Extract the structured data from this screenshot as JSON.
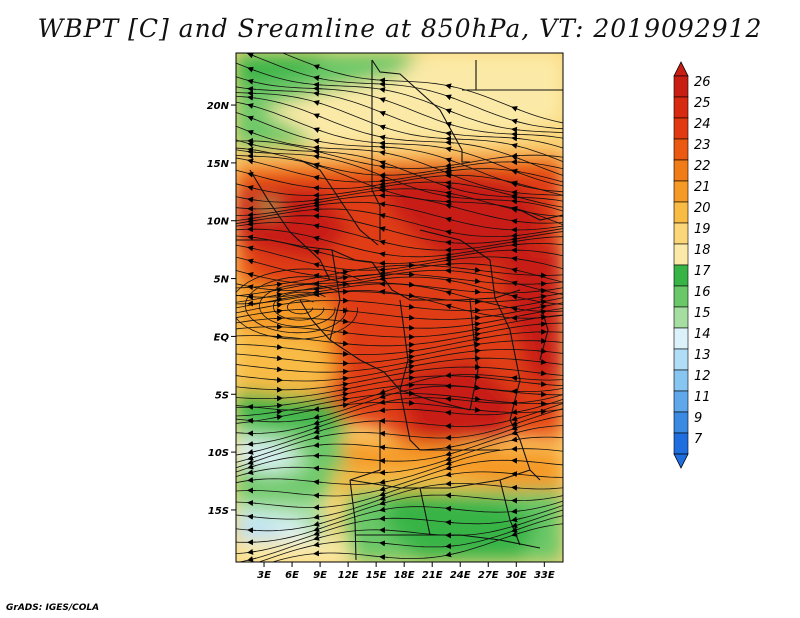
{
  "title": "WBPT [C] and Sreamline at 850hPa, VT: 2019092912",
  "footer": "GrADS: IGES/COLA",
  "lat_labels": [
    "20N",
    "15N",
    "10N",
    "5N",
    "EQ",
    "5S",
    "10S",
    "15S"
  ],
  "lat_values": [
    20,
    15,
    10,
    5,
    0,
    -5,
    -10,
    -15
  ],
  "lon_labels": [
    "3E",
    "6E",
    "9E",
    "12E",
    "15E",
    "18E",
    "21E",
    "24E",
    "27E",
    "30E",
    "33E"
  ],
  "lon_values": [
    3,
    6,
    9,
    12,
    15,
    18,
    21,
    24,
    27,
    30,
    33
  ],
  "colorbar": {
    "labels": [
      "26",
      "25",
      "24",
      "23",
      "22",
      "21",
      "20",
      "19",
      "18",
      "17",
      "16",
      "15",
      "14",
      "13",
      "12",
      "11",
      "9",
      "7"
    ],
    "colors": [
      "#c81e14",
      "#d72a10",
      "#e23a10",
      "#ea5a12",
      "#f07c18",
      "#f59a26",
      "#f8bb44",
      "#fbd77a",
      "#fbeaa7",
      "#38b446",
      "#6bc868",
      "#a6dea2",
      "#dcf2fa",
      "#b1def6",
      "#87c6f0",
      "#5fa8ea",
      "#3a8ae2",
      "#1f6ee0"
    ]
  },
  "map": {
    "extent": {
      "lon": [
        0,
        35
      ],
      "lat": [
        -19.5,
        24.5
      ]
    },
    "variable": "Wet-bulb potential temperature (C) with 850hPa streamlines",
    "layer_colors": {
      "peak": "#c81e14",
      "very_high": "#e03c12",
      "high": "#ea5a12",
      "mid_warm": "#f59a26",
      "warm": "#f8bb44",
      "mild": "#fbd77a",
      "cool": "#fbeaa7",
      "green_dark": "#38b446",
      "green": "#6bc868",
      "green_light": "#a6dea2",
      "cyan": "#dcf2fa",
      "blue_light": "#b1def6"
    }
  }
}
